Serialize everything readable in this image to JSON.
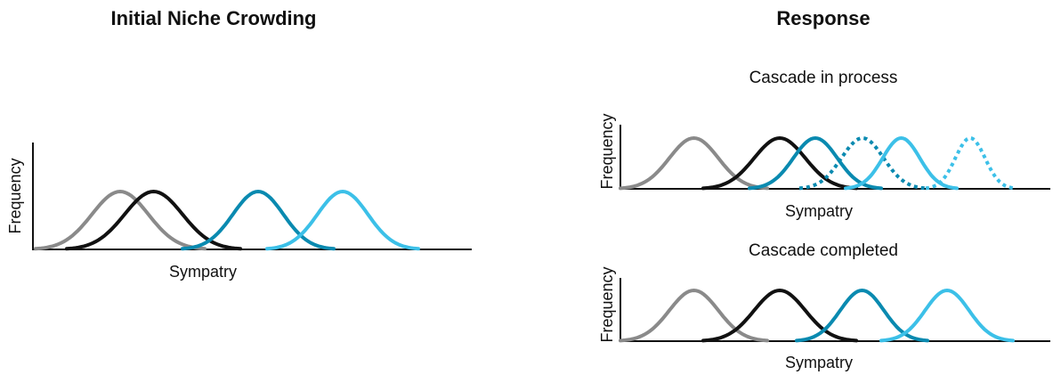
{
  "left_panel": {
    "title": "Initial Niche Crowding",
    "y_label": "Frequency",
    "x_label": "Sympatry"
  },
  "right_panel": {
    "title": "Response",
    "subpanels": [
      {
        "title": "Cascade in process",
        "y_label": "Frequency",
        "x_label": "Sympatry"
      },
      {
        "title": "Cascade completed",
        "y_label": "Frequency",
        "x_label": "Sympatry"
      }
    ]
  }
}
